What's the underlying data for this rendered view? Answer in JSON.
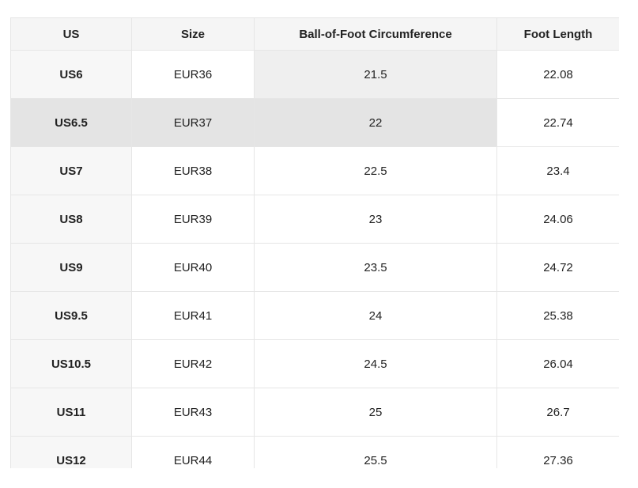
{
  "table": {
    "header": [
      "US",
      "Size",
      "Ball-of-Foot Circumference",
      "Foot Length"
    ],
    "rows": [
      [
        "US6",
        "EUR36",
        "21.5",
        "22.08"
      ],
      [
        "US6.5",
        "EUR37",
        "22",
        "22.74"
      ],
      [
        "US7",
        "EUR38",
        "22.5",
        "23.4"
      ],
      [
        "US8",
        "EUR39",
        "23",
        "24.06"
      ],
      [
        "US9",
        "EUR40",
        "23.5",
        "24.72"
      ],
      [
        "US9.5",
        "EUR41",
        "24",
        "25.38"
      ],
      [
        "US10.5",
        "EUR42",
        "24.5",
        "26.04"
      ],
      [
        "US11",
        "EUR43",
        "25",
        "26.7"
      ],
      [
        "US12",
        "EUR44",
        "25.5",
        "27.36"
      ]
    ]
  }
}
